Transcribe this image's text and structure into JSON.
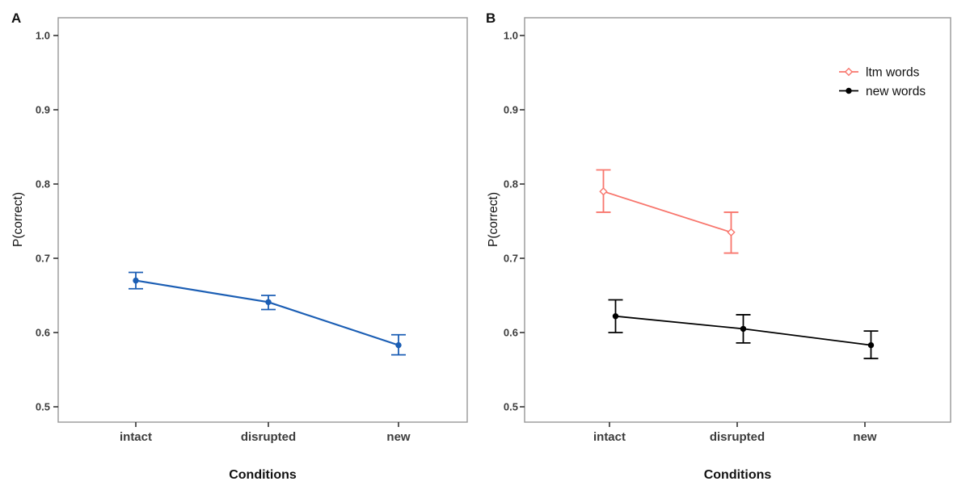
{
  "figure": {
    "background": "#ffffff",
    "panel_border_color": "#969696",
    "tick_color": "#333333",
    "axis_text_color": "#3c3c3c"
  },
  "chart_data": [
    {
      "type": "line",
      "panel_label": "A",
      "categories": [
        "intact",
        "disrupted",
        "new"
      ],
      "xlabel": "Conditions",
      "ylabel": "P(correct)",
      "ylim": [
        0.48,
        1.02
      ],
      "y_ticks": [
        1.0,
        0.9,
        0.8,
        0.7,
        0.6,
        0.5
      ],
      "grid": false,
      "legend": null,
      "series": [
        {
          "color": "#1B5EB4",
          "marker": "filled-circle",
          "values": [
            0.67,
            0.641,
            0.583
          ],
          "ci_low": [
            0.659,
            0.631,
            0.57
          ],
          "ci_high": [
            0.681,
            0.65,
            0.597
          ]
        }
      ]
    },
    {
      "type": "line",
      "panel_label": "B",
      "categories": [
        "intact",
        "disrupted",
        "new"
      ],
      "xlabel": "Conditions",
      "ylabel": "P(correct)",
      "ylim": [
        0.48,
        1.02
      ],
      "y_ticks": [
        1.0,
        0.9,
        0.8,
        0.7,
        0.6,
        0.5
      ],
      "grid": false,
      "legend": {
        "position": "top-right-inside",
        "entries": [
          "ltm words",
          "new words"
        ]
      },
      "series": [
        {
          "name": "ltm words",
          "color": "#F8766D",
          "marker": "open-diamond",
          "values": [
            0.79,
            0.735,
            null
          ],
          "ci_low": [
            0.762,
            0.707,
            null
          ],
          "ci_high": [
            0.819,
            0.762,
            null
          ]
        },
        {
          "name": "new words",
          "color": "#000000",
          "marker": "filled-circle",
          "values": [
            0.622,
            0.605,
            0.583
          ],
          "ci_low": [
            0.6,
            0.586,
            0.565
          ],
          "ci_high": [
            0.644,
            0.624,
            0.602
          ]
        }
      ]
    }
  ]
}
